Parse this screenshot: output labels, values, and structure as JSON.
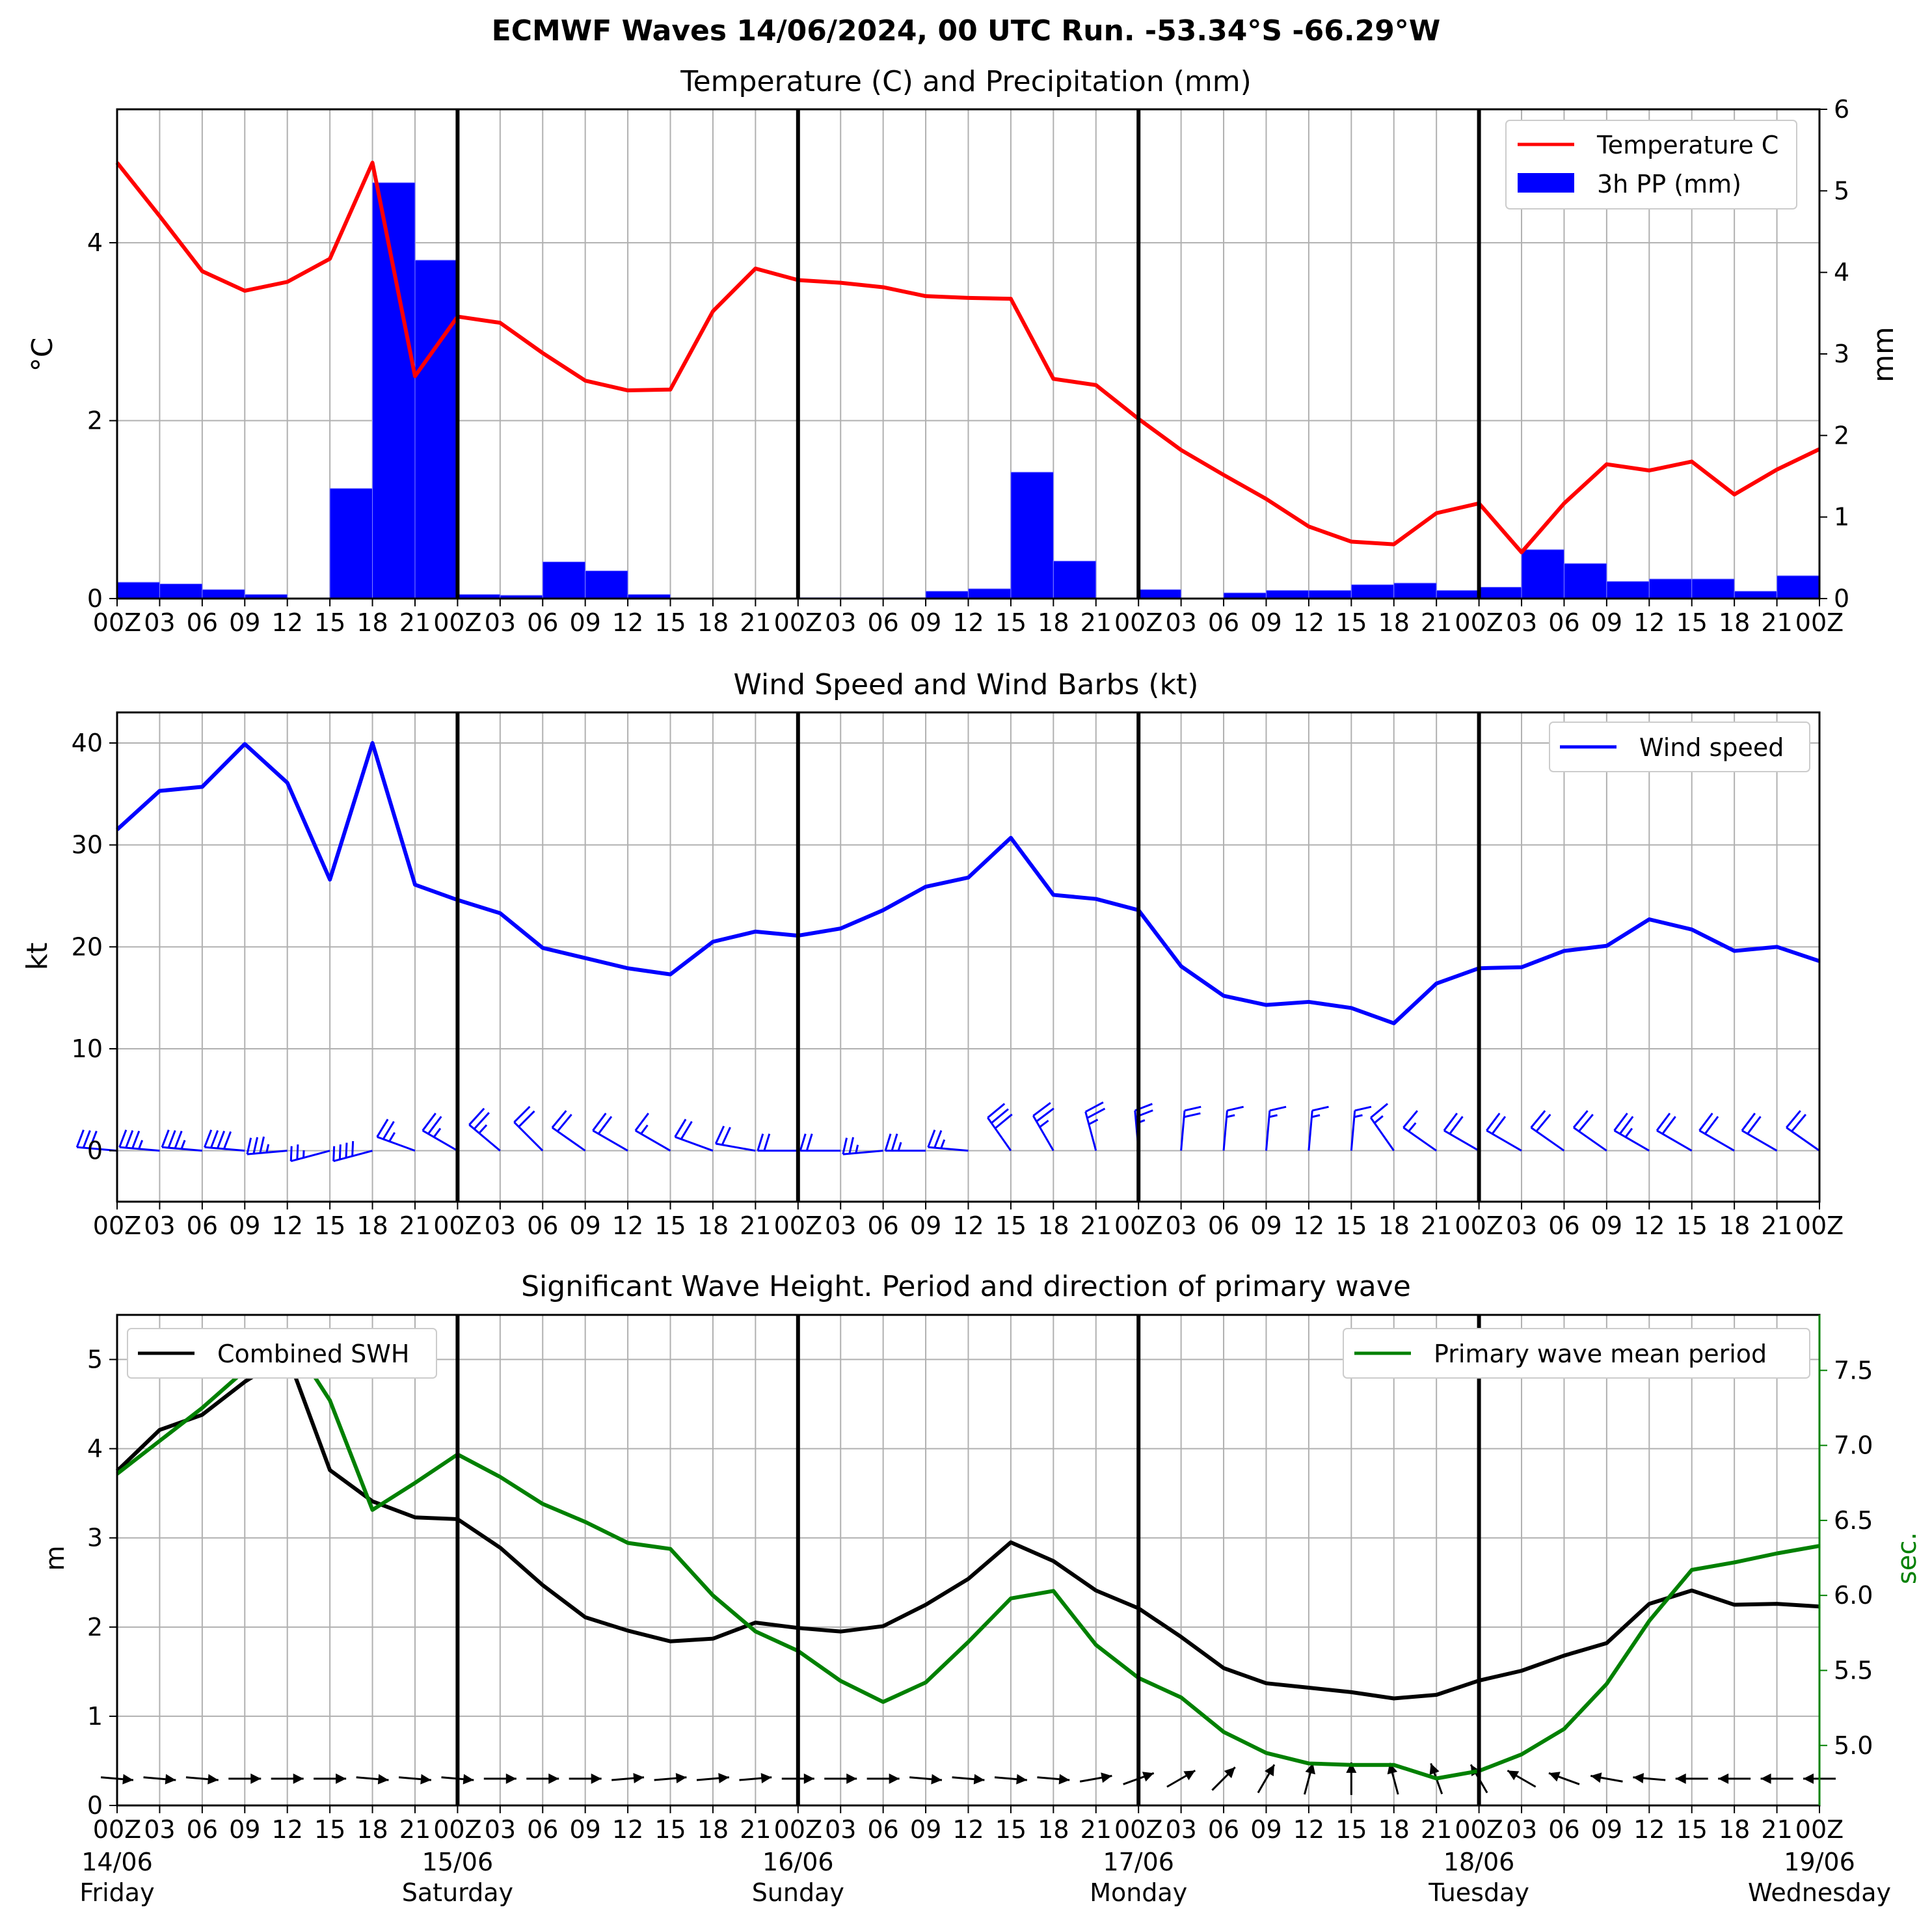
{
  "figure": {
    "suptitle": "ECMWF Waves 14/06/2024, 00 UTC Run. -53.34°S -66.29°W"
  },
  "colors": {
    "temperature": "#ff0000",
    "precip": "#0000ff",
    "wind": "#0000ff",
    "swh": "#000000",
    "period": "#008000",
    "grid": "#b0b0b0",
    "day_line": "#000000"
  },
  "chart_data": [
    {
      "type": "line",
      "title": "Temperature (C) and Precipitation (mm)",
      "ylabel": "°C",
      "ylabel_right": "mm",
      "ylim": [
        0,
        5.5
      ],
      "ylim_right": [
        0,
        6
      ],
      "yticks": [
        0,
        2,
        4
      ],
      "yticks_right": [
        0,
        1,
        2,
        3,
        4,
        5,
        6
      ],
      "x_hours": [
        0,
        3,
        6,
        9,
        12,
        15,
        18,
        21,
        24,
        27,
        30,
        33,
        36,
        39,
        42,
        45,
        48,
        51,
        54,
        57,
        60,
        63,
        66,
        69,
        72,
        75,
        78,
        81,
        84,
        87,
        90,
        93,
        96,
        99,
        102,
        105,
        108,
        111,
        114,
        117,
        120
      ],
      "xtick_labels": [
        "00Z",
        "03",
        "06",
        "09",
        "12",
        "15",
        "18",
        "21",
        "00Z",
        "03",
        "06",
        "09",
        "12",
        "15",
        "18",
        "21",
        "00Z",
        "03",
        "06",
        "09",
        "12",
        "15",
        "18",
        "21",
        "00Z",
        "03",
        "06",
        "09",
        "12",
        "15",
        "18",
        "21",
        "00Z",
        "03",
        "06",
        "09",
        "12",
        "15",
        "18",
        "21",
        "00Z"
      ],
      "legend": [
        "Temperature C",
        "3h PP (mm)"
      ],
      "legend_loc": "upper right",
      "series": [
        {
          "name": "Temperature C",
          "axis": "left",
          "values": [
            4.9,
            4.3,
            3.68,
            3.46,
            3.56,
            3.82,
            4.9,
            2.5,
            3.17,
            3.1,
            2.76,
            2.45,
            2.34,
            2.35,
            3.23,
            3.71,
            3.58,
            3.55,
            3.5,
            3.4,
            3.38,
            3.37,
            2.47,
            2.4,
            2.02,
            1.67,
            1.39,
            1.12,
            0.81,
            0.64,
            0.61,
            0.96,
            1.07,
            0.52,
            1.07,
            1.51,
            1.44,
            1.54,
            1.17,
            1.45,
            1.68
          ]
        },
        {
          "name": "3h PP (mm)",
          "axis": "right",
          "kind": "bar",
          "values": [
            0.2,
            0.18,
            0.11,
            0.05,
            0.0,
            1.35,
            5.1,
            4.15,
            0.05,
            0.04,
            0.45,
            0.34,
            0.05,
            0.0,
            0.0,
            0.0,
            0.01,
            0.01,
            0.01,
            0.09,
            0.12,
            1.55,
            0.46,
            0.0,
            0.11,
            0.0,
            0.07,
            0.1,
            0.1,
            0.17,
            0.19,
            0.1,
            0.14,
            0.6,
            0.43,
            0.21,
            0.24,
            0.24,
            0.09,
            0.28
          ]
        }
      ]
    },
    {
      "type": "line",
      "title": "Wind Speed and Wind Barbs (kt)",
      "ylabel": "kt",
      "ylim": [
        -5,
        43
      ],
      "yticks": [
        0,
        10,
        20,
        30,
        40
      ],
      "xtick_labels": [
        "00Z",
        "03",
        "06",
        "09",
        "12",
        "15",
        "18",
        "21",
        "00Z",
        "03",
        "06",
        "09",
        "12",
        "15",
        "18",
        "21",
        "00Z",
        "03",
        "06",
        "09",
        "12",
        "15",
        "18",
        "21",
        "00Z",
        "03",
        "06",
        "09",
        "12",
        "15",
        "18",
        "21",
        "00Z",
        "03",
        "06",
        "09",
        "12",
        "15",
        "18",
        "21",
        "00Z"
      ],
      "legend": [
        "Wind speed"
      ],
      "legend_loc": "upper right",
      "series": [
        {
          "name": "Wind speed",
          "values": [
            31.5,
            35.3,
            35.7,
            39.9,
            36.1,
            26.6,
            40.0,
            26.1,
            24.6,
            23.3,
            19.9,
            18.9,
            17.9,
            17.3,
            20.5,
            21.5,
            21.1,
            21.8,
            23.6,
            25.9,
            26.8,
            30.7,
            25.1,
            24.7,
            23.6,
            18.1,
            15.2,
            14.3,
            14.6,
            14.0,
            12.5,
            16.4,
            17.9,
            18.0,
            19.6,
            20.1,
            22.7,
            21.7,
            19.6,
            20.0,
            18.6
          ]
        }
      ],
      "barbs": {
        "y": 0,
        "direction_deg": [
          275,
          275,
          275,
          275,
          265,
          255,
          255,
          290,
          300,
          310,
          315,
          305,
          300,
          300,
          290,
          280,
          270,
          270,
          265,
          270,
          275,
          325,
          330,
          345,
          355,
          5,
          5,
          5,
          5,
          5,
          325,
          305,
          300,
          300,
          305,
          305,
          300,
          300,
          300,
          300,
          305
        ]
      }
    },
    {
      "type": "line",
      "title": "Significant Wave Height. Period and direction of primary wave",
      "ylabel": "m",
      "ylabel_right": "sec.",
      "ylim": [
        0,
        5.5
      ],
      "ylim_right": [
        4.6,
        7.87
      ],
      "yticks": [
        0,
        1,
        2,
        3,
        4,
        5
      ],
      "yticks_right": [
        5.0,
        5.5,
        6.0,
        6.5,
        7.0,
        7.5
      ],
      "xtick_labels": [
        "00Z",
        "03",
        "06",
        "09",
        "12",
        "15",
        "18",
        "21",
        "00Z",
        "03",
        "06",
        "09",
        "12",
        "15",
        "18",
        "21",
        "00Z",
        "03",
        "06",
        "09",
        "12",
        "15",
        "18",
        "21",
        "00Z",
        "03",
        "06",
        "09",
        "12",
        "15",
        "18",
        "21",
        "00Z",
        "03",
        "06",
        "09",
        "12",
        "15",
        "18",
        "21",
        "00Z"
      ],
      "date_labels": [
        {
          "x": 0,
          "date": "14/06",
          "day": "Friday"
        },
        {
          "x": 24,
          "date": "15/06",
          "day": "Saturday"
        },
        {
          "x": 48,
          "date": "16/06",
          "day": "Sunday"
        },
        {
          "x": 72,
          "date": "17/06",
          "day": "Monday"
        },
        {
          "x": 96,
          "date": "18/06",
          "day": "Tuesday"
        },
        {
          "x": 120,
          "date": "19/06",
          "day": "Wednesday"
        }
      ],
      "legend_left": [
        "Combined SWH"
      ],
      "legend_right": [
        "Primary wave mean period"
      ],
      "series": [
        {
          "name": "Combined SWH",
          "axis": "left",
          "values": [
            3.75,
            4.21,
            4.38,
            4.75,
            5.05,
            3.76,
            3.41,
            3.23,
            3.21,
            2.89,
            2.47,
            2.11,
            1.96,
            1.84,
            1.87,
            2.05,
            1.99,
            1.95,
            2.01,
            2.25,
            2.54,
            2.95,
            2.74,
            2.41,
            2.21,
            1.89,
            1.54,
            1.37,
            1.32,
            1.27,
            1.2,
            1.24,
            1.4,
            1.51,
            1.68,
            1.82,
            2.26,
            2.41,
            2.25,
            2.26,
            2.23
          ]
        },
        {
          "name": "Primary wave mean period",
          "axis": "right",
          "values": [
            6.81,
            7.03,
            7.25,
            7.5,
            7.74,
            7.3,
            6.57,
            6.75,
            6.94,
            6.79,
            6.61,
            6.49,
            6.35,
            6.31,
            6.0,
            5.76,
            5.63,
            5.43,
            5.29,
            5.42,
            5.69,
            5.98,
            6.03,
            5.67,
            5.45,
            5.32,
            5.09,
            4.95,
            4.88,
            4.87,
            4.87,
            4.78,
            4.83,
            4.94,
            5.11,
            5.41,
            5.83,
            6.17,
            6.22,
            6.28,
            6.33
          ]
        }
      ],
      "arrows": {
        "y": 0.3,
        "direction_deg": [
          95,
          95,
          95,
          90,
          90,
          90,
          95,
          95,
          95,
          90,
          90,
          90,
          85,
          85,
          85,
          85,
          90,
          90,
          90,
          95,
          95,
          95,
          95,
          80,
          70,
          60,
          45,
          30,
          15,
          0,
          345,
          340,
          330,
          300,
          290,
          280,
          275,
          270,
          270,
          270,
          270
        ]
      }
    }
  ]
}
